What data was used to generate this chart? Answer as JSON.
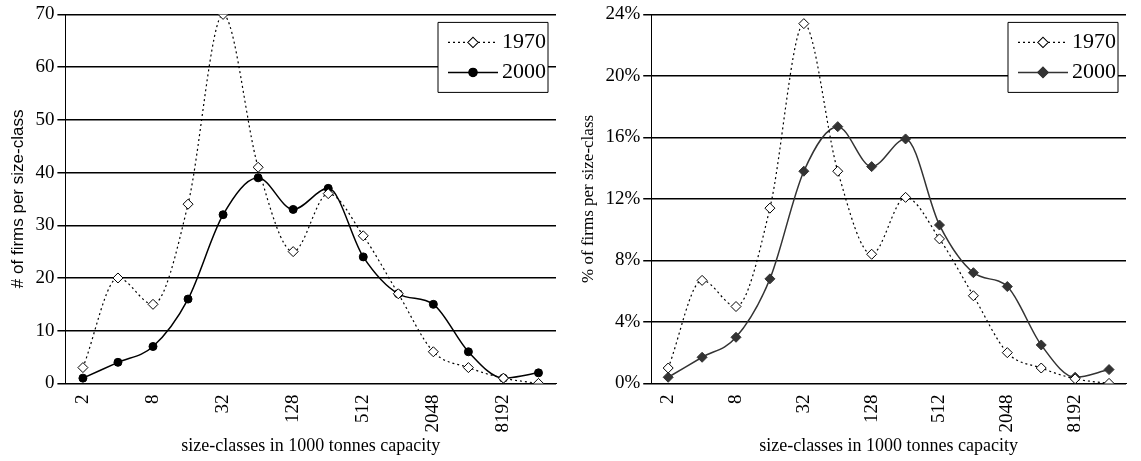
{
  "chart_data": [
    {
      "type": "line",
      "xlabel": "size-classes in 1000 tonnes capacity",
      "ylabel": "# of firms per size-class",
      "categories": [
        "2",
        null,
        "8",
        null,
        "32",
        null,
        "128",
        null,
        "512",
        null,
        "2048",
        null,
        "8192",
        null
      ],
      "ylim": [
        0,
        70
      ],
      "yticks": [
        0,
        10,
        20,
        30,
        40,
        50,
        60,
        70
      ],
      "grid": "y",
      "legend": "top right",
      "series": [
        {
          "name": "1970",
          "color": "#000000",
          "marker": "diamond",
          "line_style": "dotted",
          "values": [
            3,
            20,
            15,
            34,
            70,
            41,
            25,
            36,
            28,
            17,
            6,
            3,
            1,
            0
          ]
        },
        {
          "name": "2000",
          "color": "#000000",
          "marker": "circle",
          "line_style": "solid",
          "values": [
            1,
            4,
            7,
            16,
            32,
            39,
            33,
            37,
            24,
            17,
            15,
            6,
            1,
            2
          ]
        }
      ]
    },
    {
      "type": "line",
      "xlabel": "size-classes in 1000 tonnes capacity",
      "ylabel": "% of firms per size-class",
      "categories": [
        "2",
        null,
        "8",
        null,
        "32",
        null,
        "128",
        null,
        "512",
        null,
        "2048",
        null,
        "8192",
        null
      ],
      "ylim": [
        0,
        24
      ],
      "yticks": [
        {
          "value": 0,
          "label": "0%"
        },
        {
          "value": 4,
          "label": "4%"
        },
        {
          "value": 8,
          "label": "8%"
        },
        {
          "value": 12,
          "label": "12%"
        },
        {
          "value": 16,
          "label": "16%"
        },
        {
          "value": 20,
          "label": "20%"
        },
        {
          "value": 24,
          "label": "24%"
        }
      ],
      "grid": "y",
      "legend": "top right",
      "series": [
        {
          "name": "1970",
          "color": "#000000",
          "marker": "diamond",
          "line_style": "dotted",
          "values": [
            1.0,
            6.7,
            5.0,
            11.4,
            23.4,
            13.8,
            8.4,
            12.1,
            9.4,
            5.7,
            2.0,
            1.0,
            0.3,
            0
          ]
        },
        {
          "name": "2000",
          "color": "#333333",
          "marker": "diamond",
          "line_style": "solid",
          "values": [
            0.4,
            1.7,
            3.0,
            6.8,
            13.8,
            16.7,
            14.1,
            15.9,
            10.3,
            7.2,
            6.3,
            2.5,
            0.4,
            0.9
          ]
        }
      ]
    }
  ]
}
